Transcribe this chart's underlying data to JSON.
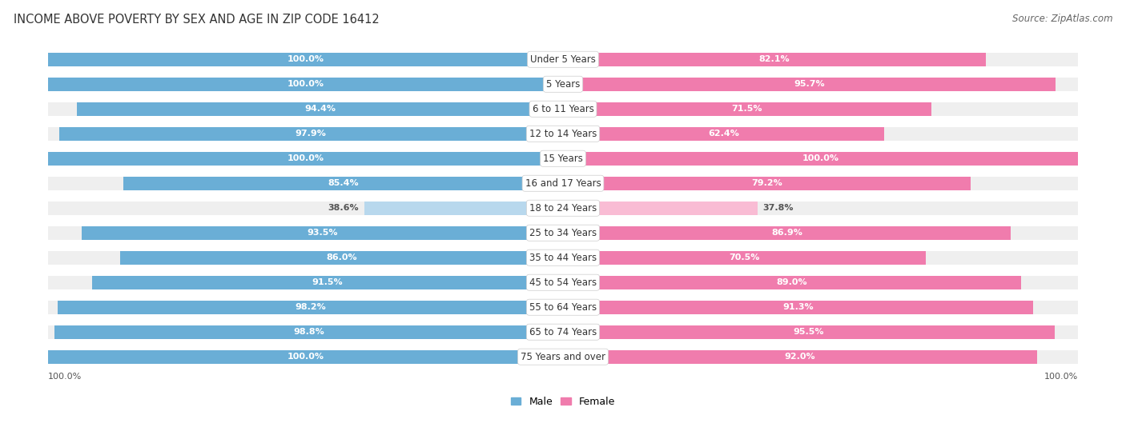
{
  "title": "INCOME ABOVE POVERTY BY SEX AND AGE IN ZIP CODE 16412",
  "source": "Source: ZipAtlas.com",
  "categories": [
    "Under 5 Years",
    "5 Years",
    "6 to 11 Years",
    "12 to 14 Years",
    "15 Years",
    "16 and 17 Years",
    "18 to 24 Years",
    "25 to 34 Years",
    "35 to 44 Years",
    "45 to 54 Years",
    "55 to 64 Years",
    "65 to 74 Years",
    "75 Years and over"
  ],
  "male_values": [
    100.0,
    100.0,
    94.4,
    97.9,
    100.0,
    85.4,
    38.6,
    93.5,
    86.0,
    91.5,
    98.2,
    98.8,
    100.0
  ],
  "female_values": [
    82.1,
    95.7,
    71.5,
    62.4,
    100.0,
    79.2,
    37.8,
    86.9,
    70.5,
    89.0,
    91.3,
    95.5,
    92.0
  ],
  "male_color": "#6aaed6",
  "female_color": "#f07cad",
  "male_color_light": "#b8d8ed",
  "female_color_light": "#f9bcd4",
  "male_label": "Male",
  "female_label": "Female",
  "background_color": "#ffffff",
  "row_bg_color": "#efefef",
  "title_fontsize": 10.5,
  "source_fontsize": 8.5,
  "label_fontsize": 8,
  "cat_fontsize": 8.5,
  "legend_fontsize": 9,
  "bottom_male_value": "100.0%",
  "bottom_female_value": "100.0%"
}
